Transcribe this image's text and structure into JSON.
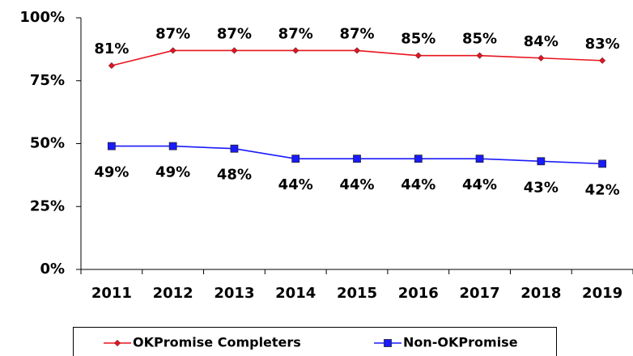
{
  "chart_data": {
    "type": "line",
    "categories": [
      "2011",
      "2012",
      "2013",
      "2014",
      "2015",
      "2016",
      "2017",
      "2018",
      "2019"
    ],
    "series": [
      {
        "name": "OKPromise Completers",
        "color": "#e8141c",
        "marker": "diamond",
        "values": [
          81,
          87,
          87,
          87,
          87,
          85,
          85,
          84,
          83
        ],
        "value_labels": [
          "81%",
          "87%",
          "87%",
          "87%",
          "87%",
          "85%",
          "85%",
          "84%",
          "83%"
        ]
      },
      {
        "name": "Non-OKPromise",
        "color": "#1a1aff",
        "marker": "square",
        "values": [
          49,
          49,
          48,
          44,
          44,
          44,
          44,
          43,
          42
        ],
        "value_labels": [
          "49%",
          "49%",
          "48%",
          "44%",
          "44%",
          "44%",
          "44%",
          "43%",
          "42%"
        ]
      }
    ],
    "ylim": [
      0,
      100
    ],
    "yticks": [
      {
        "value": 0,
        "label": "0%"
      },
      {
        "value": 25,
        "label": "25%"
      },
      {
        "value": 50,
        "label": "50%"
      },
      {
        "value": 75,
        "label": "75%"
      },
      {
        "value": 100,
        "label": "100%"
      }
    ],
    "grid": false,
    "legend": "bottom"
  }
}
